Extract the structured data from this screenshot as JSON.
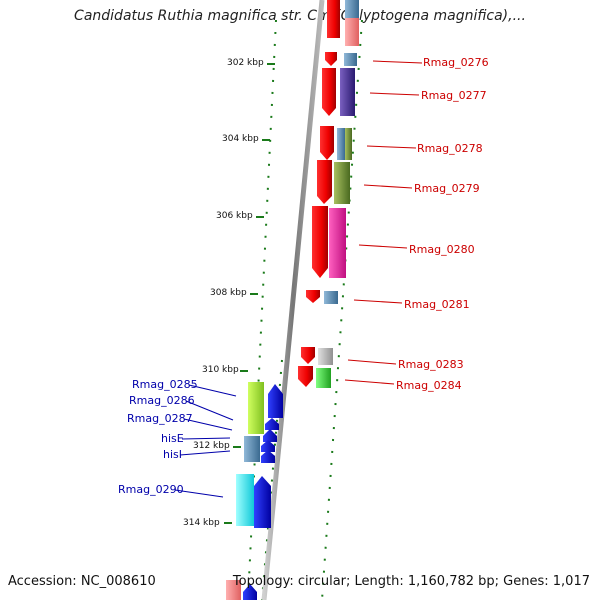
{
  "title": "Candidatus Ruthia magnifica str. Cm (Calyptogena magnifica),...",
  "footer": {
    "accession": "Accession: NC_008610",
    "topology": "Topology: circular; Length: 1,160,782 bp; Genes: 1,017"
  },
  "colors": {
    "backbone": "#888888",
    "dots": "#1a7a1a",
    "forward_label": "#cc0000",
    "reverse_label": "#0000aa"
  },
  "ticks": [
    {
      "label": "302 kbp"
    },
    {
      "label": "304 kbp"
    },
    {
      "label": "306 kbp"
    },
    {
      "label": "308 kbp"
    },
    {
      "label": "310 kbp"
    },
    {
      "label": "312 kbp"
    },
    {
      "label": "314 kbp"
    }
  ],
  "forward_genes": [
    {
      "label": "Rmag_0276"
    },
    {
      "label": "Rmag_0277"
    },
    {
      "label": "Rmag_0278"
    },
    {
      "label": "Rmag_0279"
    },
    {
      "label": "Rmag_0280"
    },
    {
      "label": "Rmag_0281"
    },
    {
      "label": "Rmag_0283"
    },
    {
      "label": "Rmag_0284"
    }
  ],
  "reverse_genes": [
    {
      "label": "Rmag_0285"
    },
    {
      "label": "Rmag_0286"
    },
    {
      "label": "Rmag_0287"
    },
    {
      "label": "hisE"
    },
    {
      "label": "hisI"
    },
    {
      "label": "Rmag_0290"
    }
  ]
}
